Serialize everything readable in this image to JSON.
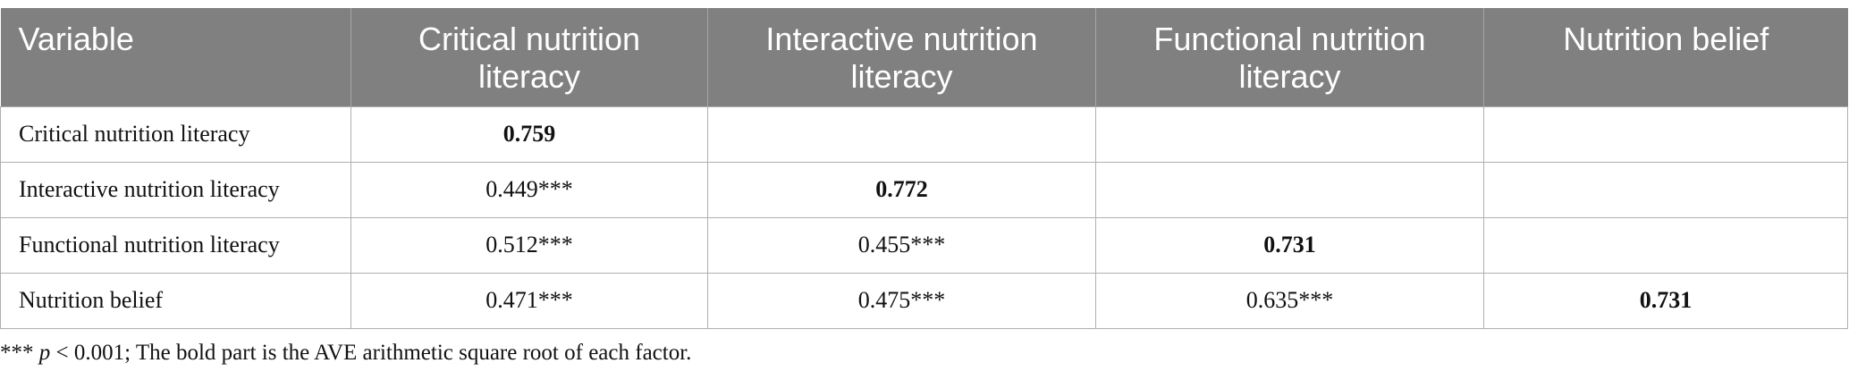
{
  "table": {
    "header": [
      "Variable",
      "Critical nutrition literacy",
      "Interactive nutrition literacy",
      "Functional nutrition literacy",
      "Nutrition belief"
    ],
    "rows": [
      [
        "Critical nutrition literacy",
        "0.759"
      ],
      [
        "Interactive nutrition literacy",
        "0.449***",
        "0.772"
      ],
      [
        "Functional nutrition literacy",
        "0.512***",
        "0.455***",
        "0.731"
      ],
      [
        "Nutrition belief",
        "0.471***",
        "0.475***",
        "0.635***",
        "0.731"
      ]
    ]
  },
  "footnote": {
    "stars": "***",
    "p": "p",
    "text": "< 0.001; The bold part is the AVE arithmetic square root of each factor."
  }
}
